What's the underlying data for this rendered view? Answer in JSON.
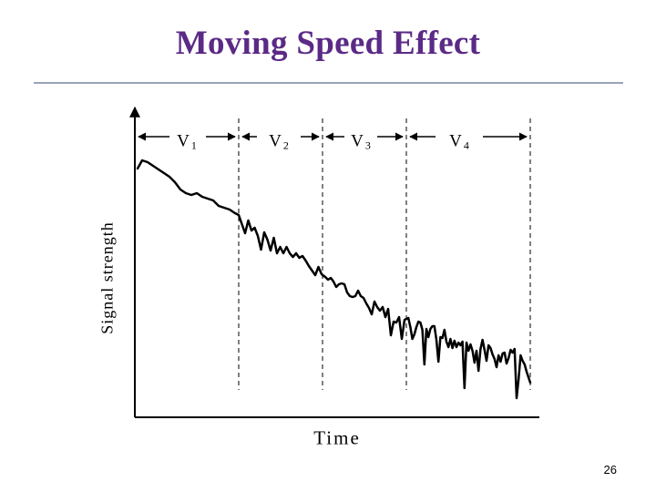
{
  "slide": {
    "title": "Moving Speed Effect",
    "page_number": "26"
  },
  "diagram": {
    "y_axis_label": "Signal strength",
    "x_axis_label": "Time",
    "segments": [
      {
        "name": "V",
        "sub": "1"
      },
      {
        "name": "V",
        "sub": "2"
      },
      {
        "name": "V",
        "sub": "3"
      },
      {
        "name": "V",
        "sub": "4"
      }
    ],
    "colors": {
      "title": "#5b2a86",
      "rule": "#9aa3b8",
      "ink": "#000000"
    }
  }
}
